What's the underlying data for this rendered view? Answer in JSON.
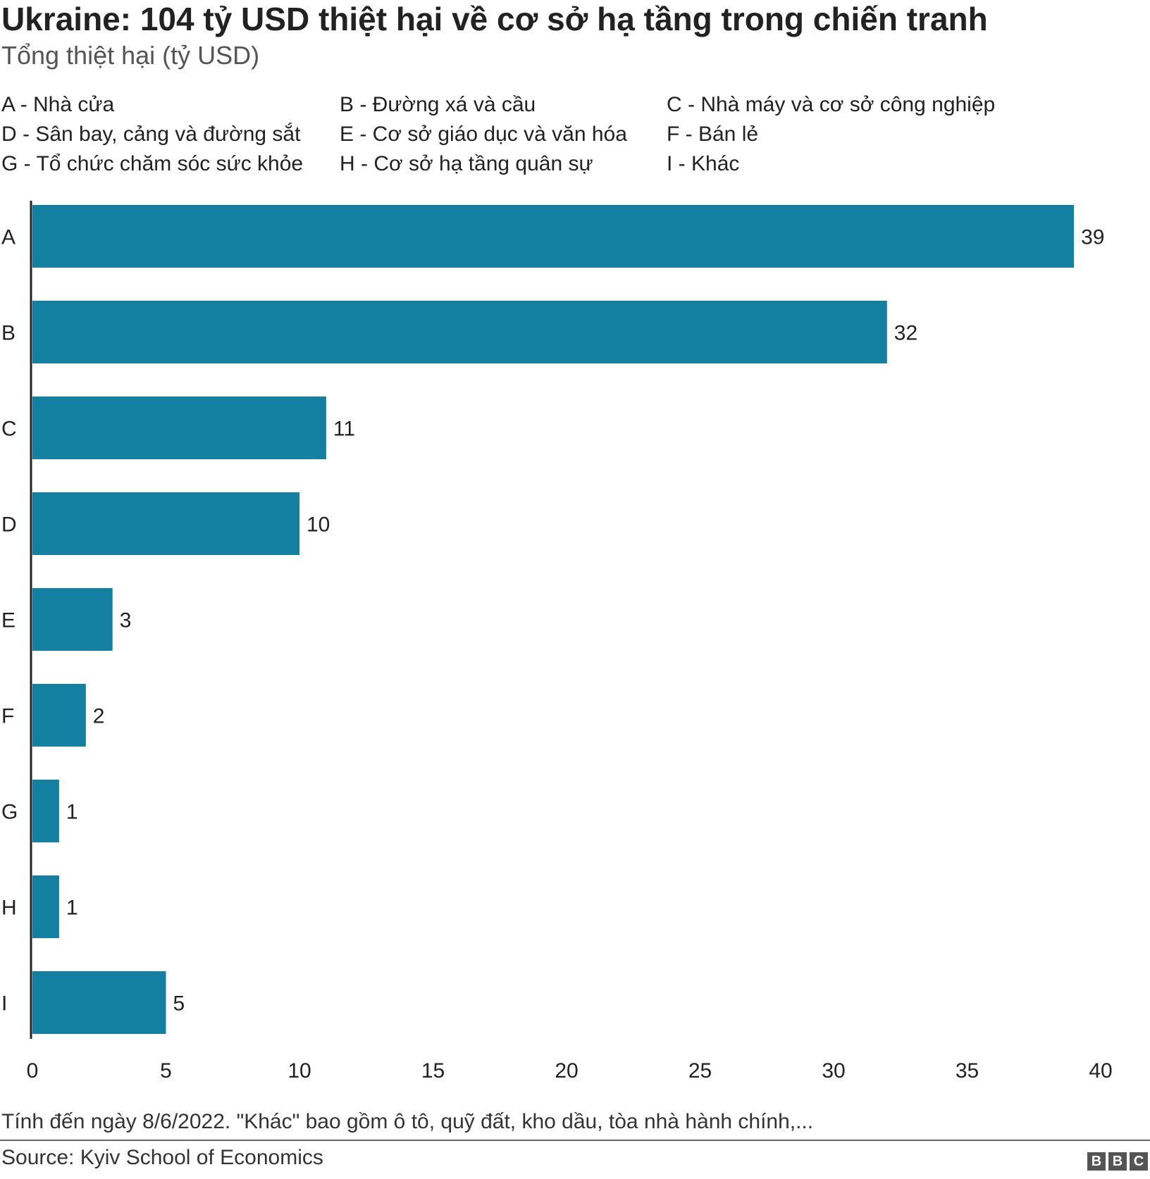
{
  "chart_data": {
    "type": "bar",
    "orientation": "horizontal",
    "title": "Ukraine: 104 tỷ USD thiệt hại về cơ sở hạ tầng trong chiến tranh",
    "subtitle": "Tổng thiệt hại (tỷ USD)",
    "categories": [
      "A",
      "B",
      "C",
      "D",
      "E",
      "F",
      "G",
      "H",
      "I"
    ],
    "values": [
      39,
      32,
      11,
      10,
      3,
      2,
      1,
      1,
      5
    ],
    "data_labels": [
      "39",
      "32",
      "11",
      "10",
      "3",
      "2",
      "1",
      "1",
      "5"
    ],
    "xlim": [
      0,
      40
    ],
    "x_ticks": [
      "0",
      "5",
      "10",
      "15",
      "20",
      "25",
      "30",
      "35",
      "40"
    ],
    "grid": false,
    "bar_color": "#1380A1",
    "key": [
      "A - Nhà cửa",
      "B - Đường xá và cầu",
      "C - Nhà máy và cơ sở công nghiệp",
      "D - Sân bay, cảng và đường sắt",
      "E - Cơ sở giáo dục và văn hóa",
      "F - Bán lẻ",
      "G - Tổ chức chăm sóc sức khỏe",
      "H - Cơ sở hạ tầng quân sự",
      "I - Khác"
    ],
    "footnote": "Tính đến ngày 8/6/2022. \"Khác\" bao gồm ô tô, quỹ đất, kho dầu, tòa nhà hành chính,...",
    "source": "Source: Kyiv School of Economics"
  },
  "logo": {
    "letters": [
      "B",
      "B",
      "C"
    ],
    "color": "#555555"
  }
}
